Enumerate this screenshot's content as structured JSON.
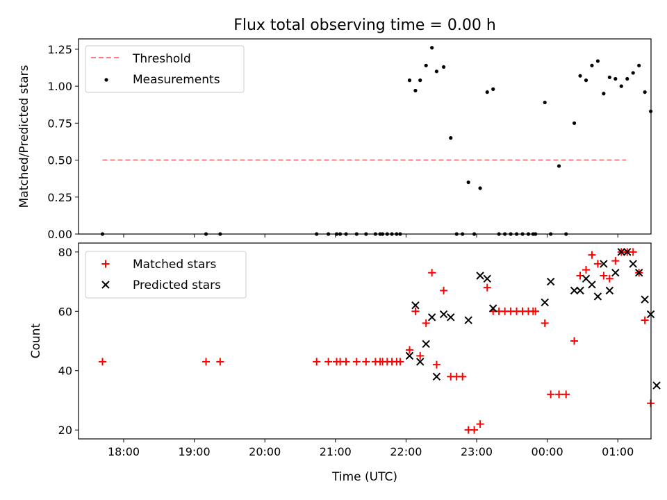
{
  "title": "Flux total observing time = 0.00 h",
  "chart_data": [
    {
      "type": "scatter",
      "ylabel": "Matched/Predicted stars",
      "xlabel": "",
      "ylim": [
        0,
        1.32
      ],
      "yticks": [
        "0.00",
        "0.25",
        "0.50",
        "0.75",
        "1.00",
        "1.25"
      ],
      "legend_position": "top-left",
      "threshold": {
        "name": "Threshold",
        "value": 0.5,
        "x_start": "17:42",
        "x_end": "01:07",
        "color": "#ff7f7f",
        "style": "dashed"
      },
      "series": [
        {
          "name": "Measurements",
          "color": "#000000",
          "marker": "dot",
          "points": [
            [
              "17:42",
              0
            ],
            [
              "19:10",
              0
            ],
            [
              "19:22",
              0
            ],
            [
              "20:44",
              0
            ],
            [
              "20:54",
              0
            ],
            [
              "21:01",
              0
            ],
            [
              "21:04",
              0
            ],
            [
              "21:09",
              0
            ],
            [
              "21:18",
              0
            ],
            [
              "21:26",
              0
            ],
            [
              "21:34",
              0
            ],
            [
              "21:38",
              0
            ],
            [
              "21:40",
              0
            ],
            [
              "21:44",
              0
            ],
            [
              "21:48",
              0
            ],
            [
              "21:52",
              0
            ],
            [
              "21:55",
              0
            ],
            [
              "22:03",
              1.04
            ],
            [
              "22:08",
              0.97
            ],
            [
              "22:12",
              1.04
            ],
            [
              "22:17",
              1.14
            ],
            [
              "22:22",
              1.26
            ],
            [
              "22:26",
              1.1
            ],
            [
              "22:32",
              1.13
            ],
            [
              "22:38",
              0.65
            ],
            [
              "22:43",
              0
            ],
            [
              "22:48",
              0
            ],
            [
              "22:53",
              0.35
            ],
            [
              "22:58",
              0
            ],
            [
              "23:03",
              0.31
            ],
            [
              "23:09",
              0.96
            ],
            [
              "23:14",
              0.98
            ],
            [
              "23:19",
              0
            ],
            [
              "23:24",
              0
            ],
            [
              "23:29",
              0
            ],
            [
              "23:34",
              0
            ],
            [
              "23:39",
              0
            ],
            [
              "23:44",
              0
            ],
            [
              "23:48",
              0
            ],
            [
              "23:50",
              0
            ],
            [
              "23:58",
              0.89
            ],
            [
              "00:03",
              0
            ],
            [
              "00:10",
              0.46
            ],
            [
              "00:16",
              0
            ],
            [
              "00:23",
              0.75
            ],
            [
              "00:28",
              1.07
            ],
            [
              "00:33",
              1.04
            ],
            [
              "00:38",
              1.14
            ],
            [
              "00:43",
              1.17
            ],
            [
              "00:48",
              0.95
            ],
            [
              "00:53",
              1.06
            ],
            [
              "00:58",
              1.05
            ],
            [
              "01:03",
              1.0
            ],
            [
              "01:08",
              1.05
            ],
            [
              "01:13",
              1.09
            ],
            [
              "01:18",
              1.14
            ],
            [
              "01:23",
              0.96
            ],
            [
              "01:28",
              0.83
            ]
          ]
        }
      ]
    },
    {
      "type": "scatter",
      "ylabel": "Count",
      "xlabel": "Time (UTC)",
      "ylim": [
        17,
        83
      ],
      "yticks": [
        "20",
        "40",
        "60",
        "80"
      ],
      "xticks": [
        "18:00",
        "19:00",
        "20:00",
        "21:00",
        "22:00",
        "23:00",
        "00:00",
        "01:00"
      ],
      "legend_position": "top-left",
      "series": [
        {
          "name": "Matched stars",
          "color": "#ff0000",
          "marker": "plus",
          "points": [
            [
              "17:42",
              43
            ],
            [
              "19:10",
              43
            ],
            [
              "19:22",
              43
            ],
            [
              "20:44",
              43
            ],
            [
              "20:54",
              43
            ],
            [
              "21:01",
              43
            ],
            [
              "21:04",
              43
            ],
            [
              "21:09",
              43
            ],
            [
              "21:18",
              43
            ],
            [
              "21:26",
              43
            ],
            [
              "21:34",
              43
            ],
            [
              "21:38",
              43
            ],
            [
              "21:40",
              43
            ],
            [
              "21:44",
              43
            ],
            [
              "21:48",
              43
            ],
            [
              "21:52",
              43
            ],
            [
              "21:55",
              43
            ],
            [
              "22:03",
              47
            ],
            [
              "22:08",
              60
            ],
            [
              "22:12",
              45
            ],
            [
              "22:17",
              56
            ],
            [
              "22:22",
              73
            ],
            [
              "22:26",
              42
            ],
            [
              "22:32",
              67
            ],
            [
              "22:38",
              38
            ],
            [
              "22:43",
              38
            ],
            [
              "22:48",
              38
            ],
            [
              "22:53",
              20
            ],
            [
              "22:58",
              20
            ],
            [
              "23:03",
              22
            ],
            [
              "23:09",
              68
            ],
            [
              "23:14",
              60
            ],
            [
              "23:19",
              60
            ],
            [
              "23:24",
              60
            ],
            [
              "23:29",
              60
            ],
            [
              "23:34",
              60
            ],
            [
              "23:39",
              60
            ],
            [
              "23:44",
              60
            ],
            [
              "23:48",
              60
            ],
            [
              "23:50",
              60
            ],
            [
              "23:58",
              56
            ],
            [
              "00:03",
              32
            ],
            [
              "00:10",
              32
            ],
            [
              "00:16",
              32
            ],
            [
              "00:23",
              50
            ],
            [
              "00:28",
              72
            ],
            [
              "00:33",
              74
            ],
            [
              "00:38",
              79
            ],
            [
              "00:43",
              76
            ],
            [
              "00:48",
              72
            ],
            [
              "00:53",
              71
            ],
            [
              "00:58",
              77
            ],
            [
              "01:03",
              80
            ],
            [
              "01:08",
              80
            ],
            [
              "01:13",
              80
            ],
            [
              "01:18",
              73
            ],
            [
              "01:23",
              57
            ],
            [
              "01:28",
              29
            ]
          ]
        },
        {
          "name": "Predicted stars",
          "color": "#000000",
          "marker": "x",
          "points": [
            [
              "22:03",
              45
            ],
            [
              "22:08",
              62
            ],
            [
              "22:12",
              43
            ],
            [
              "22:17",
              49
            ],
            [
              "22:22",
              58
            ],
            [
              "22:26",
              38
            ],
            [
              "22:32",
              59
            ],
            [
              "22:38",
              58
            ],
            [
              "22:53",
              57
            ],
            [
              "23:03",
              72
            ],
            [
              "23:09",
              71
            ],
            [
              "23:14",
              61
            ],
            [
              "23:58",
              63
            ],
            [
              "00:03",
              70
            ],
            [
              "00:23",
              67
            ],
            [
              "00:28",
              67
            ],
            [
              "00:33",
              71
            ],
            [
              "00:38",
              69
            ],
            [
              "00:43",
              65
            ],
            [
              "00:48",
              76
            ],
            [
              "00:53",
              67
            ],
            [
              "00:58",
              73
            ],
            [
              "01:03",
              80
            ],
            [
              "01:08",
              80
            ],
            [
              "01:13",
              76
            ],
            [
              "01:18",
              73
            ],
            [
              "01:23",
              64
            ],
            [
              "01:28",
              59
            ],
            [
              "01:33",
              35
            ]
          ]
        }
      ]
    }
  ]
}
